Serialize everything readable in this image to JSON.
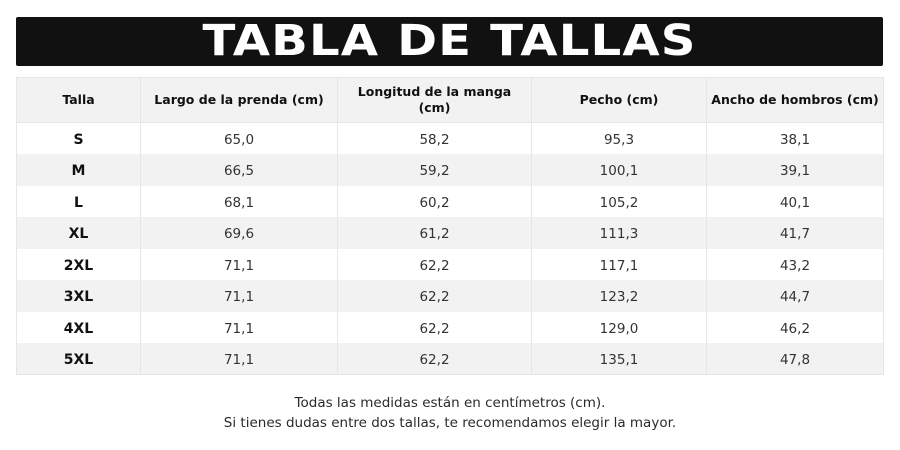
{
  "title": "TABLA DE TALLAS",
  "table": {
    "headers": [
      "Talla",
      "Largo de la prenda (cm)",
      "Longitud de la manga (cm)",
      "Pecho (cm)",
      "Ancho de hombros (cm)"
    ],
    "rows": [
      {
        "size": "S",
        "largo": "65,0",
        "manga": "58,2",
        "pecho": "95,3",
        "hombros": "38,1"
      },
      {
        "size": "M",
        "largo": "66,5",
        "manga": "59,2",
        "pecho": "100,1",
        "hombros": "39,1"
      },
      {
        "size": "L",
        "largo": "68,1",
        "manga": "60,2",
        "pecho": "105,2",
        "hombros": "40,1"
      },
      {
        "size": "XL",
        "largo": "69,6",
        "manga": "61,2",
        "pecho": "111,3",
        "hombros": "41,7"
      },
      {
        "size": "2XL",
        "largo": "71,1",
        "manga": "62,2",
        "pecho": "117,1",
        "hombros": "43,2"
      },
      {
        "size": "3XL",
        "largo": "71,1",
        "manga": "62,2",
        "pecho": "123,2",
        "hombros": "44,7"
      },
      {
        "size": "4XL",
        "largo": "71,1",
        "manga": "62,2",
        "pecho": "129,0",
        "hombros": "46,2"
      },
      {
        "size": "5XL",
        "largo": "71,1",
        "manga": "62,2",
        "pecho": "135,1",
        "hombros": "47,8"
      }
    ]
  },
  "footnote": {
    "line1": "Todas las medidas están en centímetros (cm).",
    "line2": "Si tienes dudas entre dos tallas, te recomendamos elegir la mayor."
  },
  "colors": {
    "title_bar": "#111111",
    "title_text": "#ffffff",
    "stripe": "#f2f2f2",
    "border": "#e6e6e6"
  }
}
